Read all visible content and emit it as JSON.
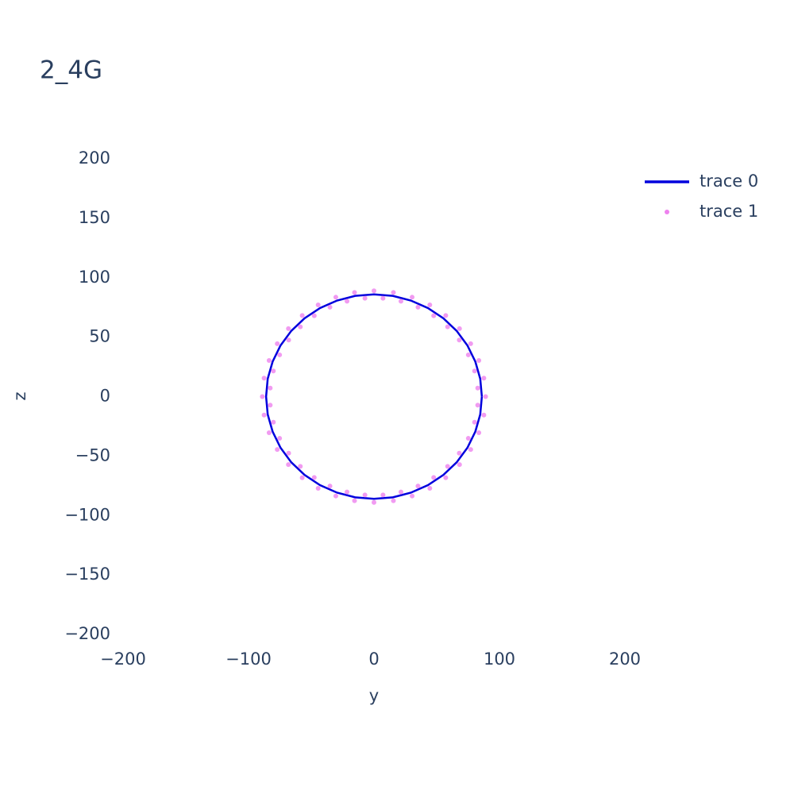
{
  "chart_data": {
    "type": "scatter",
    "title": "2_4G",
    "xlabel": "y",
    "ylabel": "z",
    "xlim": [
      -200,
      200
    ],
    "ylim": [
      -200,
      200
    ],
    "xticks": [
      {
        "value": -200,
        "label": "−200"
      },
      {
        "value": -100,
        "label": "−100"
      },
      0,
      100,
      200
    ],
    "yticks": [
      {
        "value": -200,
        "label": "−200"
      },
      {
        "value": -150,
        "label": "−150"
      },
      {
        "value": -100,
        "label": "−100"
      },
      {
        "value": -50,
        "label": "−50"
      },
      0,
      50,
      100,
      150,
      200
    ],
    "grid": false,
    "legend": "top-right",
    "series": [
      {
        "name": "trace 0",
        "mode": "lines",
        "color": "#0000dd",
        "x": [
          86,
          84.7,
          80.8,
          74.5,
          65.9,
          55.3,
          43,
          29.4,
          15,
          0,
          -15,
          -29.4,
          -43,
          -55.3,
          -65.9,
          -74.5,
          -80.8,
          -84.7,
          -86,
          -84.7,
          -80.8,
          -74.5,
          -65.9,
          -55.3,
          -43,
          -29.4,
          -15,
          0,
          15,
          29.4,
          43,
          55.3,
          65.9,
          74.5,
          80.8,
          84.7,
          86
        ],
        "values": [
          0,
          15,
          29.4,
          43,
          55.3,
          65.9,
          74.5,
          80.8,
          84.7,
          86,
          84.7,
          80.8,
          74.5,
          65.9,
          55.3,
          43,
          29.4,
          15,
          0,
          -15,
          -29.4,
          -43,
          -55.3,
          -65.9,
          -74.5,
          -80.8,
          -84.7,
          -86,
          -84.7,
          -80.8,
          -74.5,
          -65.9,
          -55.3,
          -43,
          -29.4,
          -15,
          0
        ]
      },
      {
        "name": "trace 1",
        "mode": "markers",
        "color": "#ee82ee",
        "x": [
          89,
          82.7,
          87.6,
          80.2,
          83.6,
          75.2,
          77.1,
          68,
          68.2,
          58.7,
          57.2,
          47.6,
          44.5,
          35.1,
          30.4,
          21.5,
          15.5,
          7.2,
          0,
          -7.2,
          -15.5,
          -21.5,
          -30.4,
          -35.1,
          -44.5,
          -47.6,
          -57.2,
          -58.7,
          -68.2,
          -68,
          -77.1,
          -75.2,
          -83.6,
          -80.2,
          -87.6,
          -82.7,
          -89,
          -82.7,
          -87.6,
          -80.2,
          -83.6,
          -75.2,
          -77.1,
          -68,
          -68.2,
          -58.7,
          -57.2,
          -47.6,
          -44.5,
          -35.1,
          -30.4,
          -21.5,
          -15.5,
          -7.2,
          0,
          7.2,
          15.5,
          21.5,
          30.4,
          35.1,
          44.5,
          47.6,
          57.2,
          58.7,
          68.2,
          68,
          77.1,
          75.2,
          83.6,
          80.2,
          87.6,
          82.7
        ],
        "values": [
          0,
          7.2,
          15.5,
          21.5,
          30.4,
          35.1,
          44.5,
          47.6,
          57.2,
          58.7,
          68.2,
          68,
          77.1,
          75.2,
          83.6,
          80.2,
          87.6,
          82.7,
          89,
          82.7,
          87.6,
          80.2,
          83.6,
          75.2,
          77.1,
          68,
          68.2,
          58.7,
          57.2,
          47.6,
          44.5,
          35.1,
          30.4,
          21.5,
          15.5,
          7.2,
          0,
          -7.2,
          -15.5,
          -21.5,
          -30.4,
          -35.1,
          -44.5,
          -47.6,
          -57.2,
          -58.7,
          -68.2,
          -68,
          -77.1,
          -75.2,
          -83.6,
          -80.2,
          -87.6,
          -82.7,
          -89,
          -82.7,
          -87.6,
          -80.2,
          -83.6,
          -75.2,
          -77.1,
          -68,
          -68.2,
          -58.7,
          -57.2,
          -47.6,
          -44.5,
          -35.1,
          -30.4,
          -21.5,
          -15.5,
          -7.2
        ]
      }
    ]
  }
}
